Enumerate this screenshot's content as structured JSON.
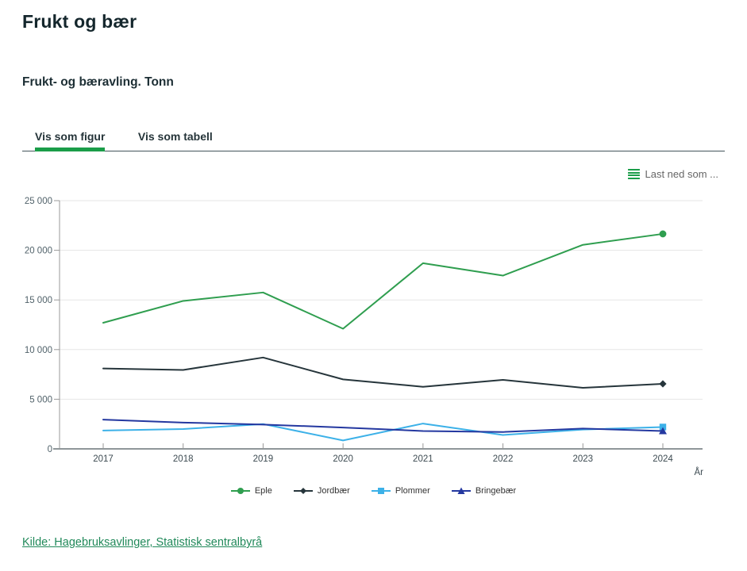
{
  "page": {
    "title": "Frukt og bær",
    "subtitle": "Frukt- og bæravling. Tonn",
    "source_link": "Kilde: Hagebruksavlinger, Statistisk sentralbyrå"
  },
  "tabs": [
    {
      "label": "Vis som figur",
      "active": true
    },
    {
      "label": "Vis som tabell",
      "active": false
    }
  ],
  "toolbar": {
    "download_label": "Last ned som ...",
    "download_icon": "hamburger-menu-icon"
  },
  "colors": {
    "accent_green": "#1a9d49",
    "link_green": "#21895a",
    "grid": "#e6e6e6",
    "axis": "#999999",
    "x_axis_line": "#8f9699",
    "tick_label": "#51626a",
    "x_label": "#3d4b52"
  },
  "chart_data": {
    "type": "line",
    "title": "Frukt- og bæravling. Tonn",
    "categories": [
      "2017",
      "2018",
      "2019",
      "2020",
      "2021",
      "2022",
      "2023",
      "2024"
    ],
    "xlabel": "År",
    "ylabel": "",
    "ylim": [
      0,
      25000
    ],
    "ytick_step": 5000,
    "ytick_labels": [
      "0",
      "5 000",
      "10 000",
      "15 000",
      "20 000",
      "25 000"
    ],
    "grid": true,
    "legend_position": "bottom",
    "marker_on_last_point_only": true,
    "series": [
      {
        "name": "Eple",
        "color": "#2f9e4f",
        "marker": "circle",
        "values": [
          12700,
          14900,
          15750,
          12100,
          18700,
          17450,
          20550,
          21650
        ]
      },
      {
        "name": "Jordbær",
        "color": "#26353b",
        "marker": "diamond",
        "values": [
          8100,
          7950,
          9200,
          7000,
          6250,
          6950,
          6150,
          6550
        ]
      },
      {
        "name": "Plommer",
        "color": "#3cb1e8",
        "marker": "square",
        "values": [
          1850,
          2000,
          2500,
          850,
          2550,
          1400,
          1950,
          2200
        ]
      },
      {
        "name": "Bringebær",
        "color": "#2438a0",
        "marker": "triangle",
        "values": [
          2950,
          2650,
          2450,
          2150,
          1800,
          1700,
          2050,
          1800
        ]
      }
    ]
  }
}
